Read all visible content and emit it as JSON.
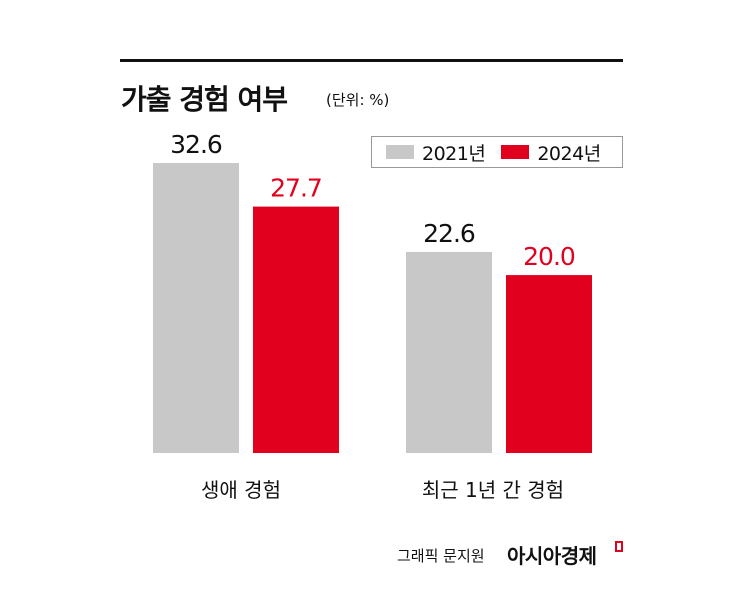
{
  "header": {
    "title": "가출 경험 여부",
    "unit": "(단위: %)"
  },
  "colors": {
    "series_2021": "#c8c8c8",
    "series_2024": "#e1001d",
    "label_2021": "#111111",
    "label_2024": "#e1001d"
  },
  "chart_data": {
    "type": "bar",
    "title": "가출 경험 여부",
    "unit": "(단위: %)",
    "categories": [
      "생애 경험",
      "최근 1년 간 경험"
    ],
    "series": [
      {
        "name": "2021년",
        "values": [
          32.6,
          22.6
        ]
      },
      {
        "name": "2024년",
        "values": [
          27.7,
          20.0
        ]
      }
    ],
    "value_labels": [
      [
        "32.6",
        "22.6"
      ],
      [
        "27.7",
        "20.0"
      ]
    ],
    "ylim": [
      0,
      32.6
    ],
    "legend_position": "top-right",
    "grid": false
  },
  "footer": {
    "credit": "그래픽 문지원",
    "brand": "아시아경제"
  }
}
